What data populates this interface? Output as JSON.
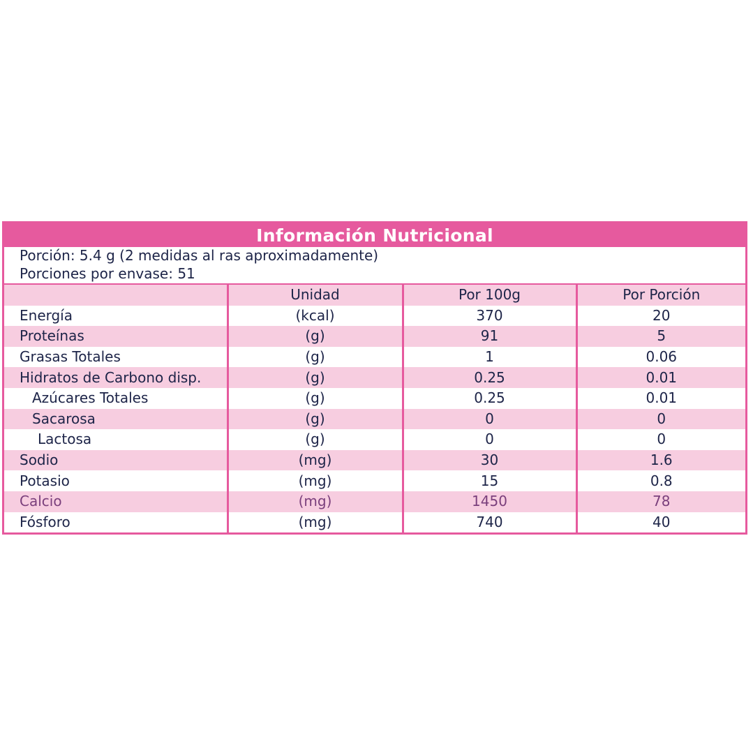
{
  "title": "Información Nutricional",
  "serving": {
    "portion": "Porción: 5.4 g (2 medidas al ras aproximadamente)",
    "servings_per_container": "Porciones por envase: 51"
  },
  "columns": {
    "name": "",
    "unit": "Unidad",
    "per_100g": "Por 100g",
    "per_portion": "Por Porción"
  },
  "rows": [
    {
      "name": "Energía",
      "unit": "(kcal)",
      "per_100g": "370",
      "per_portion": "20"
    },
    {
      "name": "Proteínas",
      "unit": "(g)",
      "per_100g": "91",
      "per_portion": "5"
    },
    {
      "name": "Grasas Totales",
      "unit": "(g)",
      "per_100g": "1",
      "per_portion": "0.06"
    },
    {
      "name": "Hidratos de Carbono disp.",
      "unit": "(g)",
      "per_100g": "0.25",
      "per_portion": "0.01"
    },
    {
      "name": "Azúcares Totales",
      "unit": "(g)",
      "per_100g": "0.25",
      "per_portion": "0.01"
    },
    {
      "name": "Sacarosa",
      "unit": "(g)",
      "per_100g": "0",
      "per_portion": "0"
    },
    {
      "name": "Lactosa",
      "unit": "(g)",
      "per_100g": "0",
      "per_portion": "0"
    },
    {
      "name": "Sodio",
      "unit": "(mg)",
      "per_100g": "30",
      "per_portion": "1.6"
    },
    {
      "name": "Potasio",
      "unit": "(mg)",
      "per_100g": "15",
      "per_portion": "0.8"
    },
    {
      "name": "Calcio",
      "unit": "(mg)",
      "per_100g": "1450",
      "per_portion": "78"
    },
    {
      "name": "Fósforo",
      "unit": "(mg)",
      "per_100g": "740",
      "per_portion": "40"
    }
  ],
  "colors": {
    "accent": "#e65a9e",
    "row_shade": "#f7cde0",
    "text": "#1d2448"
  }
}
